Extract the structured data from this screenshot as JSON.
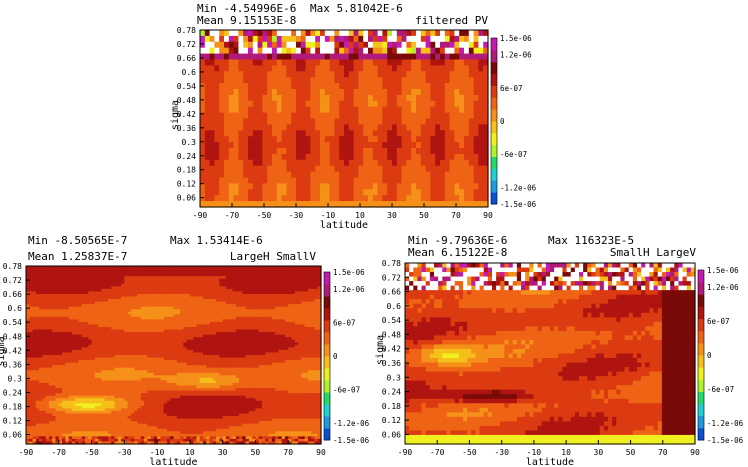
{
  "colormap": [
    "#0a4fd6",
    "#1f9ae0",
    "#1fd0d0",
    "#24d86a",
    "#b0f22a",
    "#f0f020",
    "#f6c01a",
    "#f59018",
    "#ef6414",
    "#dc3a10",
    "#b01410",
    "#7a0a08",
    "#b01a7a",
    "#c21ab2"
  ],
  "missing_color": "#ffffff",
  "chart_data": [
    {
      "type": "heatmap",
      "title": "filtered PV",
      "stats": {
        "min": "Min  -4.54996E-6",
        "max": "Max  5.81042E-6",
        "mean": "Mean  9.15153E-8"
      },
      "xlabel": "latitude",
      "ylabel": "sigma",
      "xlim": [
        -90,
        90
      ],
      "ylim": [
        0.02,
        0.78
      ],
      "x_ticks": [
        "-90",
        "-70",
        "-50",
        "-30",
        "-10",
        "10",
        "30",
        "50",
        "70",
        "90"
      ],
      "y_ticks": [
        "0.78",
        "0.72",
        "0.66",
        "0.6",
        "0.54",
        "0.48",
        "0.42",
        "0.36",
        "0.3",
        "0.24",
        "0.18",
        "0.12",
        "0.06"
      ],
      "colorbar": {
        "range": [
          -1.5e-06,
          1.5e-06
        ],
        "ticks": [
          "1.5e-06",
          "1.2e-06",
          "6e-07",
          "0",
          "-6e-07",
          "-1.2e-06",
          "-1.5e-06"
        ]
      },
      "grid": {
        "nx": 60,
        "ny": 30,
        "mode": "noisy",
        "seed": 11
      }
    },
    {
      "type": "heatmap",
      "title": "LargeH SmallV",
      "stats": {
        "min": "Min  -8.50565E-7",
        "max": "Max  1.53414E-6",
        "mean": "Mean  1.25837E-7"
      },
      "xlabel": "latitude",
      "ylabel": "sigma",
      "xlim": [
        -90,
        90
      ],
      "ylim": [
        0.02,
        0.78
      ],
      "x_ticks": [
        "-90",
        "-70",
        "-50",
        "-30",
        "-10",
        "10",
        "30",
        "50",
        "70",
        "90"
      ],
      "y_ticks": [
        "0.78",
        "0.72",
        "0.66",
        "0.6",
        "0.54",
        "0.48",
        "0.42",
        "0.36",
        "0.3",
        "0.24",
        "0.18",
        "0.12",
        "0.06"
      ],
      "colorbar": {
        "range": [
          -1.5e-06,
          1.5e-06
        ],
        "ticks": [
          "1.5e-06",
          "1.2e-06",
          "6e-07",
          "0",
          "-6e-07",
          "-1.2e-06",
          "-1.5e-06"
        ]
      },
      "grid": {
        "nx": 90,
        "ny": 70,
        "mode": "smooth",
        "seed": 23
      }
    },
    {
      "type": "heatmap",
      "title": "SmallH LargeV",
      "stats": {
        "min": "Min  -9.79636E-6",
        "max": "Max  116323E-5",
        "mean": "Mean  6.15122E-8"
      },
      "xlabel": "latitude",
      "ylabel": "sigma",
      "xlim": [
        -90,
        90
      ],
      "ylim": [
        0.02,
        0.78
      ],
      "x_ticks": [
        "-90",
        "-70",
        "-50",
        "-30",
        "-10",
        "10",
        "30",
        "50",
        "70",
        "90"
      ],
      "y_ticks": [
        "0.78",
        "0.72",
        "0.66",
        "0.6",
        "0.54",
        "0.48",
        "0.42",
        "0.36",
        "0.3",
        "0.24",
        "0.18",
        "0.12",
        "0.06"
      ],
      "colorbar": {
        "range": [
          -1.5e-06,
          1.5e-06
        ],
        "ticks": [
          "1.5e-06",
          "1.2e-06",
          "6e-07",
          "0",
          "-6e-07",
          "-1.2e-06",
          "-1.5e-06"
        ]
      },
      "grid": {
        "nx": 70,
        "ny": 40,
        "mode": "mixed",
        "seed": 37
      }
    }
  ]
}
